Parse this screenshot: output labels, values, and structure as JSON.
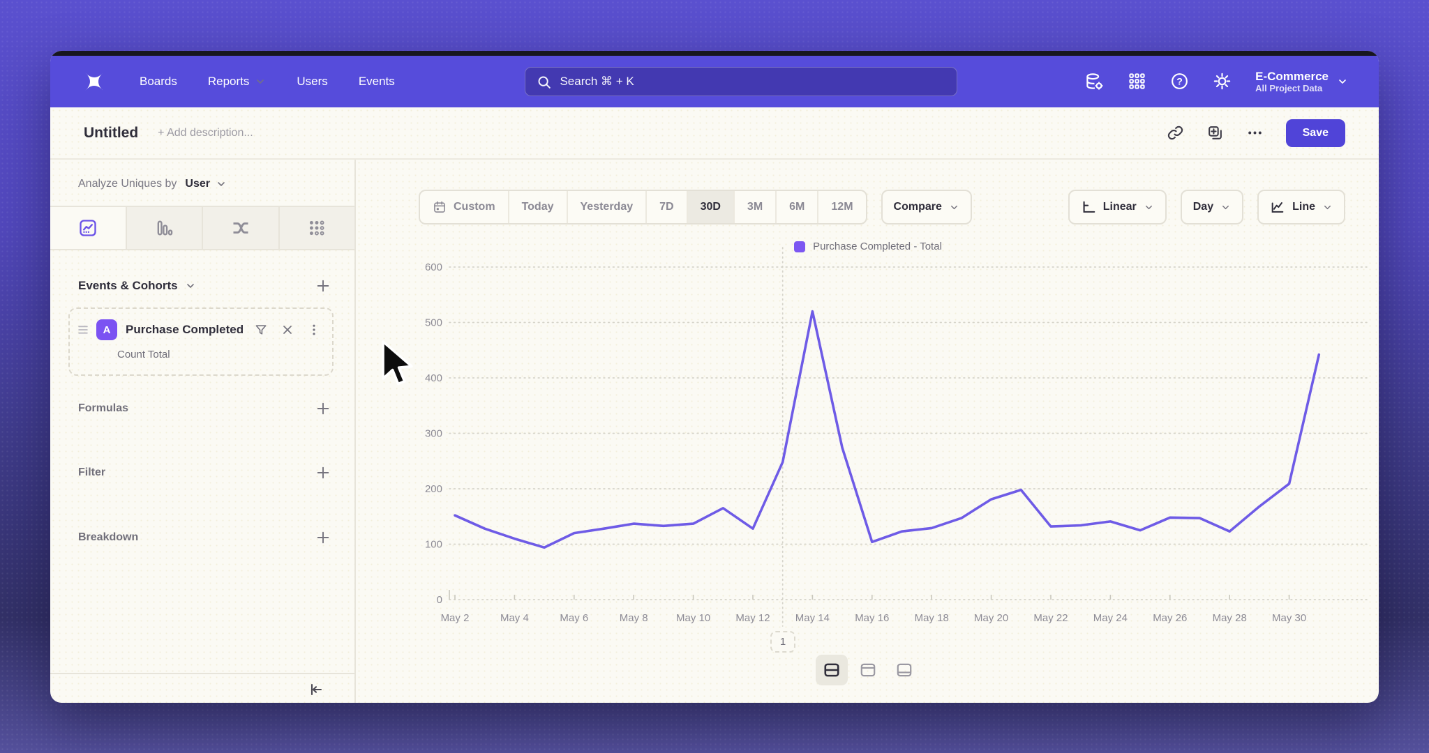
{
  "nav": {
    "items": [
      "Boards",
      "Reports",
      "Users",
      "Events"
    ],
    "search_placeholder": "Search  ⌘ + K",
    "project": {
      "name": "E-Commerce",
      "subtitle": "All Project Data"
    }
  },
  "header": {
    "title": "Untitled",
    "description_placeholder": "+ Add description...",
    "save_label": "Save"
  },
  "sidebar": {
    "analyze_prefix": "Analyze Uniques by",
    "analyze_value": "User",
    "events_section_label": "Events & Cohorts",
    "event_card": {
      "badge": "A",
      "title": "Purchase Completed",
      "subtitle": "Count Total"
    },
    "formulas_label": "Formulas",
    "filter_label": "Filter",
    "breakdown_label": "Breakdown"
  },
  "toolbar": {
    "ranges": [
      "Custom",
      "Today",
      "Yesterday",
      "7D",
      "30D",
      "3M",
      "6M",
      "12M"
    ],
    "selected_range": "30D",
    "compare_label": "Compare",
    "scale_label": "Linear",
    "interval_label": "Day",
    "chart_type_label": "Line"
  },
  "pagination_label": "1",
  "colors": {
    "nav_bg": "#564CDB",
    "accent": "#5044D8",
    "line": "#6E5BE6",
    "legend_swatch": "#7C57F2",
    "badge": "#7B52F2"
  },
  "icons": {
    "logo": "mixpanel-x-mark",
    "help_glyph": "?"
  },
  "chart_data": {
    "type": "line",
    "title": "",
    "legend_label": "Purchase Completed - Total",
    "x": [
      "May 2",
      "May 3",
      "May 4",
      "May 5",
      "May 6",
      "May 7",
      "May 8",
      "May 9",
      "May 10",
      "May 11",
      "May 12",
      "May 13",
      "May 14",
      "May 15",
      "May 16",
      "May 17",
      "May 18",
      "May 19",
      "May 20",
      "May 21",
      "May 22",
      "May 23",
      "May 24",
      "May 25",
      "May 26",
      "May 27",
      "May 28",
      "May 29",
      "May 30",
      "May 31"
    ],
    "series": [
      {
        "name": "Purchase Completed - Total",
        "color": "#6E5BE6",
        "values": [
          152,
          128,
          110,
          94,
          120,
          128,
          137,
          133,
          137,
          165,
          128,
          248,
          520,
          274,
          104,
          123,
          129,
          147,
          181,
          198,
          132,
          134,
          141,
          125,
          148,
          147,
          123,
          168,
          209,
          442
        ]
      }
    ],
    "ylim": [
      0,
      600
    ],
    "yticks": [
      0,
      100,
      200,
      300,
      400,
      500,
      600
    ],
    "xtick_every": 2,
    "vline_label": "May 13",
    "grid": "horizontal-dotted",
    "legend_position": "top-center"
  }
}
